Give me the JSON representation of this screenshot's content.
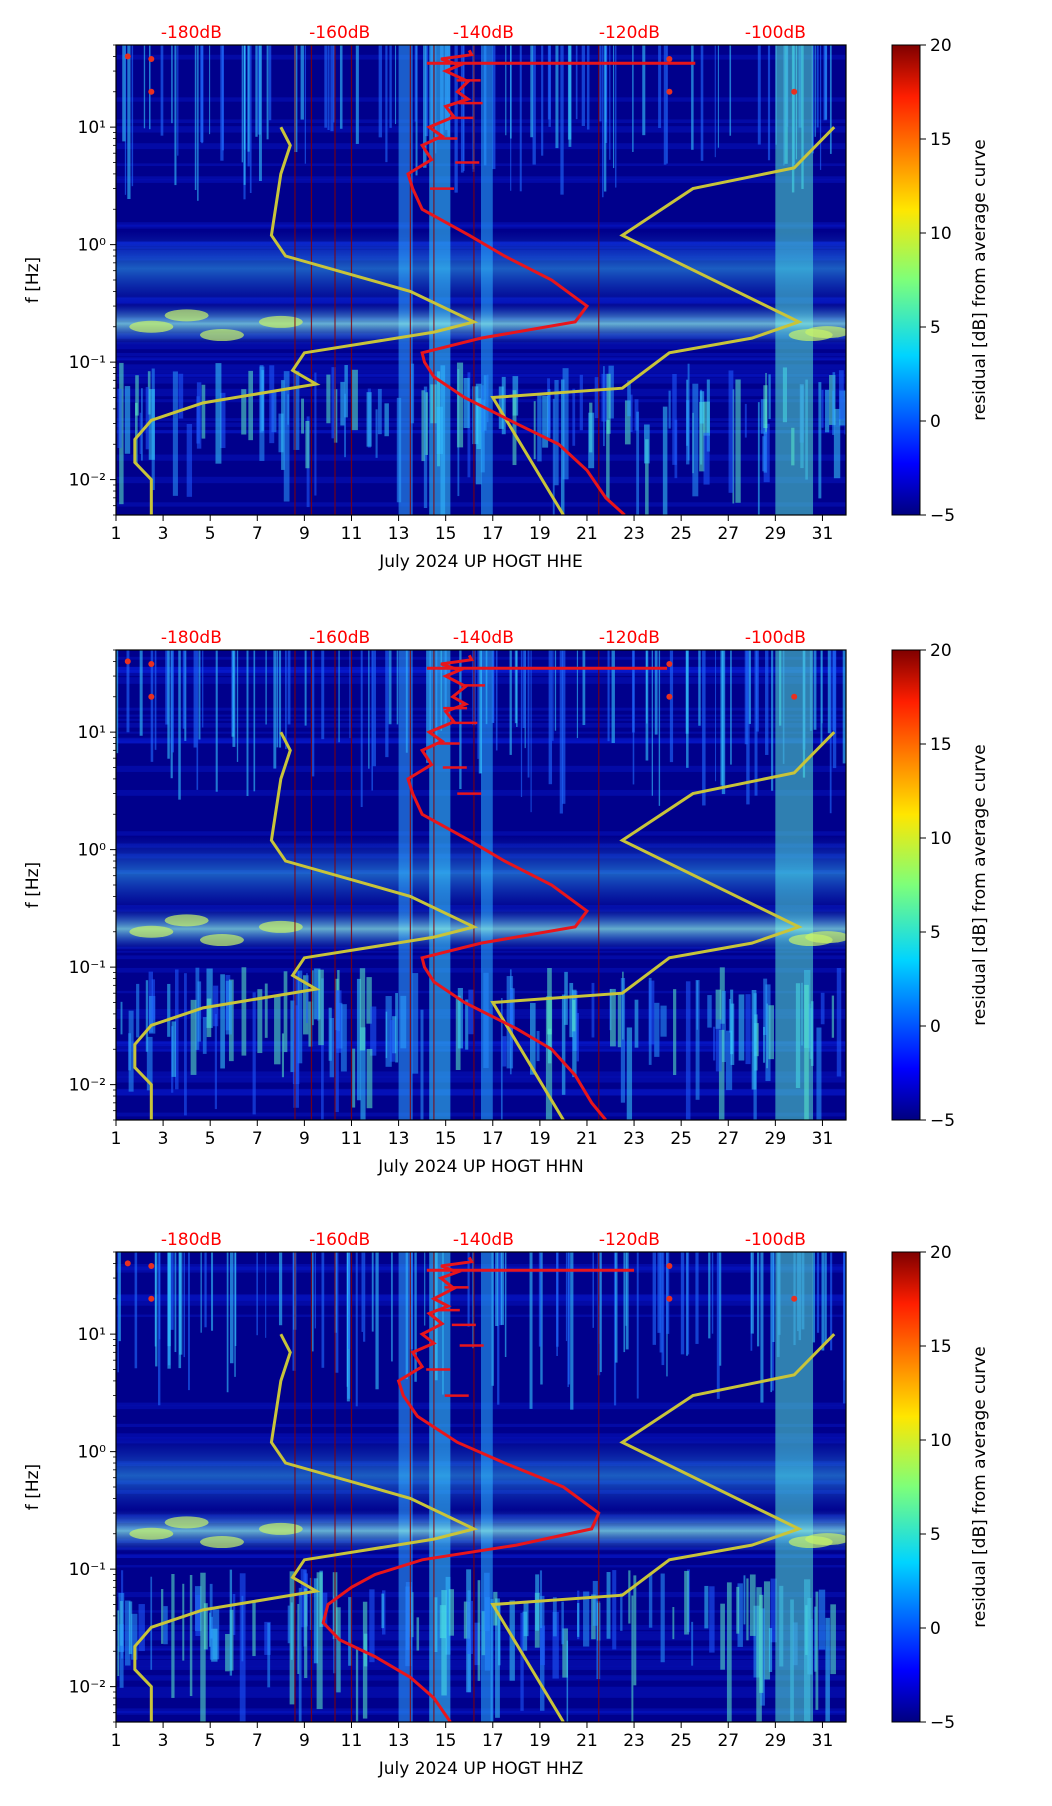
{
  "figure": {
    "description_colors": {
      "red_curve": "#e8151b",
      "yellow_curve": "#c8c43a",
      "db_labels": "#ff0000",
      "background_low": "#00007f"
    }
  },
  "chart_data": [
    {
      "type": "heatmap",
      "title": "",
      "xlabel": "July 2024 UP HOGT  HHE",
      "ylabel": "f [Hz]",
      "x_ticks": [
        "1",
        "3",
        "5",
        "7",
        "9",
        "11",
        "13",
        "15",
        "17",
        "19",
        "21",
        "23",
        "25",
        "27",
        "29",
        "31"
      ],
      "y_ticks": [
        "10⁻²",
        "10⁻¹",
        "10⁰",
        "10¹"
      ],
      "xlim": [
        1,
        32
      ],
      "ylim": [
        0.005,
        50
      ],
      "top_labels": [
        "-180dB",
        "-160dB",
        "-140dB",
        "-120dB",
        "-100dB"
      ],
      "colorbar": {
        "label": "residual [dB] from average curve",
        "ticks": [
          "20",
          "15",
          "10",
          "5",
          "0",
          "−5"
        ],
        "range": [
          -5,
          20
        ]
      },
      "yellow_curve": [
        [
          10,
          8.0
        ],
        [
          7,
          8.4
        ],
        [
          4,
          8.0
        ],
        [
          1.2,
          7.6
        ],
        [
          0.8,
          8.2
        ],
        [
          0.4,
          13.5
        ],
        [
          0.22,
          16.2
        ],
        [
          0.18,
          14.5
        ],
        [
          0.12,
          9.0
        ],
        [
          0.085,
          8.5
        ],
        [
          0.065,
          9.5
        ],
        [
          0.045,
          4.7
        ],
        [
          0.032,
          2.5
        ],
        [
          0.022,
          1.8
        ],
        [
          0.014,
          1.8
        ],
        [
          0.01,
          2.5
        ],
        [
          0.005,
          2.5
        ]
      ],
      "yellow_curve_right": [
        [
          10,
          31.5
        ],
        [
          4.5,
          29.8
        ],
        [
          3,
          25.5
        ],
        [
          1.2,
          22.5
        ],
        [
          0.22,
          30.0
        ],
        [
          0.16,
          28.0
        ],
        [
          0.12,
          24.5
        ],
        [
          0.06,
          22.5
        ],
        [
          0.05,
          17.0
        ],
        [
          0.005,
          20.0
        ]
      ],
      "red_curve": [
        [
          45,
          16.0
        ],
        [
          38,
          14.8
        ],
        [
          30,
          15.0
        ],
        [
          20,
          15.5
        ],
        [
          15,
          15.0
        ],
        [
          10,
          14.3
        ],
        [
          7,
          14.0
        ],
        [
          4,
          13.4
        ],
        [
          3,
          13.6
        ],
        [
          2,
          14.0
        ],
        [
          1.2,
          16.0
        ],
        [
          0.8,
          17.5
        ],
        [
          0.5,
          19.5
        ],
        [
          0.3,
          21.0
        ],
        [
          0.22,
          20.5
        ],
        [
          0.16,
          16.5
        ],
        [
          0.12,
          14.0
        ],
        [
          0.1,
          14.1
        ],
        [
          0.075,
          14.5
        ],
        [
          0.05,
          15.8
        ],
        [
          0.03,
          18.0
        ],
        [
          0.02,
          19.8
        ],
        [
          0.012,
          21.0
        ],
        [
          0.007,
          21.8
        ],
        [
          0.005,
          22.6
        ]
      ],
      "red_hline": {
        "f": 35,
        "x_start": 14.2,
        "x_end": 25.6
      }
    },
    {
      "type": "heatmap",
      "title": "",
      "xlabel": "July 2024 UP HOGT  HHN",
      "ylabel": "f [Hz]",
      "x_ticks": [
        "1",
        "3",
        "5",
        "7",
        "9",
        "11",
        "13",
        "15",
        "17",
        "19",
        "21",
        "23",
        "25",
        "27",
        "29",
        "31"
      ],
      "y_ticks": [
        "10⁻²",
        "10⁻¹",
        "10⁰",
        "10¹"
      ],
      "xlim": [
        1,
        32
      ],
      "ylim": [
        0.005,
        50
      ],
      "top_labels": [
        "-180dB",
        "-160dB",
        "-140dB",
        "-120dB",
        "-100dB"
      ],
      "colorbar": {
        "label": "residual [dB] from average curve",
        "ticks": [
          "20",
          "15",
          "10",
          "5",
          "0",
          "−5"
        ],
        "range": [
          -5,
          20
        ]
      },
      "yellow_curve": [
        [
          10,
          8.0
        ],
        [
          7,
          8.4
        ],
        [
          4,
          8.0
        ],
        [
          1.2,
          7.6
        ],
        [
          0.8,
          8.2
        ],
        [
          0.4,
          13.5
        ],
        [
          0.22,
          16.2
        ],
        [
          0.18,
          14.5
        ],
        [
          0.12,
          9.0
        ],
        [
          0.085,
          8.5
        ],
        [
          0.065,
          9.5
        ],
        [
          0.045,
          4.7
        ],
        [
          0.032,
          2.5
        ],
        [
          0.022,
          1.8
        ],
        [
          0.014,
          1.8
        ],
        [
          0.01,
          2.5
        ],
        [
          0.005,
          2.5
        ]
      ],
      "yellow_curve_right": [
        [
          10,
          31.5
        ],
        [
          4.5,
          29.8
        ],
        [
          3,
          25.5
        ],
        [
          1.2,
          22.5
        ],
        [
          0.22,
          30.0
        ],
        [
          0.16,
          28.0
        ],
        [
          0.12,
          24.5
        ],
        [
          0.06,
          22.5
        ],
        [
          0.05,
          17.0
        ],
        [
          0.005,
          20.0
        ]
      ],
      "red_curve": [
        [
          45,
          16.0
        ],
        [
          38,
          14.8
        ],
        [
          30,
          15.0
        ],
        [
          20,
          15.3
        ],
        [
          15,
          15.0
        ],
        [
          10,
          14.3
        ],
        [
          7,
          14.0
        ],
        [
          4,
          13.4
        ],
        [
          3,
          13.6
        ],
        [
          2,
          14.0
        ],
        [
          1.2,
          16.0
        ],
        [
          0.8,
          17.5
        ],
        [
          0.5,
          19.5
        ],
        [
          0.3,
          21.0
        ],
        [
          0.22,
          20.5
        ],
        [
          0.16,
          16.5
        ],
        [
          0.12,
          14.0
        ],
        [
          0.1,
          14.1
        ],
        [
          0.075,
          14.5
        ],
        [
          0.05,
          15.8
        ],
        [
          0.03,
          18.0
        ],
        [
          0.02,
          19.5
        ],
        [
          0.012,
          20.5
        ],
        [
          0.007,
          21.2
        ],
        [
          0.005,
          21.8
        ]
      ],
      "red_hline": {
        "f": 35,
        "x_start": 14.2,
        "x_end": 24.4
      }
    },
    {
      "type": "heatmap",
      "title": "",
      "xlabel": "July 2024 UP HOGT  HHZ",
      "ylabel": "f [Hz]",
      "x_ticks": [
        "1",
        "3",
        "5",
        "7",
        "9",
        "11",
        "13",
        "15",
        "17",
        "19",
        "21",
        "23",
        "25",
        "27",
        "29",
        "31"
      ],
      "y_ticks": [
        "10⁻²",
        "10⁻¹",
        "10⁰",
        "10¹"
      ],
      "xlim": [
        1,
        32
      ],
      "ylim": [
        0.005,
        50
      ],
      "top_labels": [
        "-180dB",
        "-160dB",
        "-140dB",
        "-120dB",
        "-100dB"
      ],
      "colorbar": {
        "label": "residual [dB] from average curve",
        "ticks": [
          "20",
          "15",
          "10",
          "5",
          "0",
          "−5"
        ],
        "range": [
          -5,
          20
        ]
      },
      "yellow_curve": [
        [
          10,
          8.0
        ],
        [
          7,
          8.4
        ],
        [
          4,
          8.0
        ],
        [
          1.2,
          7.6
        ],
        [
          0.8,
          8.2
        ],
        [
          0.4,
          13.5
        ],
        [
          0.22,
          16.2
        ],
        [
          0.18,
          14.5
        ],
        [
          0.12,
          9.0
        ],
        [
          0.085,
          8.5
        ],
        [
          0.065,
          9.5
        ],
        [
          0.045,
          4.7
        ],
        [
          0.032,
          2.5
        ],
        [
          0.022,
          1.8
        ],
        [
          0.014,
          1.8
        ],
        [
          0.01,
          2.5
        ],
        [
          0.005,
          2.5
        ]
      ],
      "yellow_curve_right": [
        [
          10,
          31.5
        ],
        [
          4.5,
          29.8
        ],
        [
          3,
          25.5
        ],
        [
          1.2,
          22.5
        ],
        [
          0.22,
          30.0
        ],
        [
          0.16,
          28.0
        ],
        [
          0.12,
          24.5
        ],
        [
          0.06,
          22.5
        ],
        [
          0.05,
          17.0
        ],
        [
          0.005,
          20.0
        ]
      ],
      "red_curve": [
        [
          45,
          16.0
        ],
        [
          38,
          14.8
        ],
        [
          30,
          14.8
        ],
        [
          20,
          14.5
        ],
        [
          15,
          14.3
        ],
        [
          10,
          14.0
        ],
        [
          7,
          13.6
        ],
        [
          4,
          13.0
        ],
        [
          3,
          13.2
        ],
        [
          2,
          13.8
        ],
        [
          1.2,
          15.5
        ],
        [
          0.8,
          17.5
        ],
        [
          0.5,
          20.0
        ],
        [
          0.3,
          21.5
        ],
        [
          0.22,
          21.2
        ],
        [
          0.16,
          18.0
        ],
        [
          0.12,
          14.0
        ],
        [
          0.09,
          12.0
        ],
        [
          0.07,
          11.0
        ],
        [
          0.05,
          10.0
        ],
        [
          0.035,
          9.8
        ],
        [
          0.025,
          10.5
        ],
        [
          0.018,
          12.0
        ],
        [
          0.012,
          13.5
        ],
        [
          0.008,
          14.5
        ],
        [
          0.005,
          15.2
        ]
      ],
      "red_hline": {
        "f": 35,
        "x_start": 14.2,
        "x_end": 23.0
      }
    }
  ]
}
